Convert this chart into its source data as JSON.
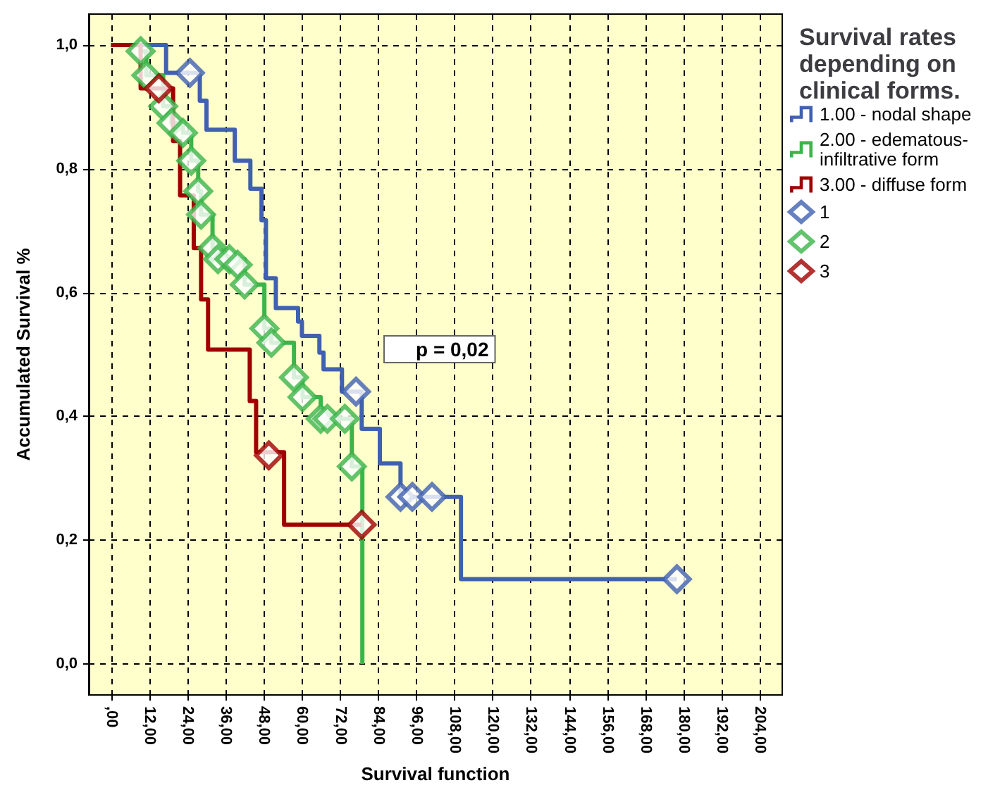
{
  "chart_data": {
    "type": "step",
    "xlabel": "Survival function",
    "ylabel": "Accumulated Survival %",
    "legend_title": "Survival rates depending on clinical forms.",
    "annotations": [
      "p = 0,02"
    ],
    "xlim": [
      -7,
      211
    ],
    "xticks": [
      {
        "value": 0,
        "label": ",00"
      },
      {
        "value": 12,
        "label": "12,00"
      },
      {
        "value": 24,
        "label": "24,00"
      },
      {
        "value": 36,
        "label": "36,00"
      },
      {
        "value": 48,
        "label": "48,00"
      },
      {
        "value": 60,
        "label": "60,00"
      },
      {
        "value": 72,
        "label": "72,00"
      },
      {
        "value": 84,
        "label": "84,00"
      },
      {
        "value": 96,
        "label": "96,00"
      },
      {
        "value": 108,
        "label": "108,00"
      },
      {
        "value": 120,
        "label": "120,00"
      },
      {
        "value": 132,
        "label": "132,00"
      },
      {
        "value": 144,
        "label": "144,00"
      },
      {
        "value": 156,
        "label": "156,00"
      },
      {
        "value": 168,
        "label": "168,00"
      },
      {
        "value": 180,
        "label": "180,00"
      },
      {
        "value": 192,
        "label": "192,00"
      },
      {
        "value": 204,
        "label": "204,00"
      }
    ],
    "ylim": [
      -0.05,
      1.05
    ],
    "yticks": [
      {
        "value": 0,
        "label": "0,0"
      },
      {
        "value": 0.2,
        "label": "0,2"
      },
      {
        "value": 0.4,
        "label": "0,4"
      },
      {
        "value": 0.6,
        "label": "0,6"
      },
      {
        "value": 0.8,
        "label": "0,8"
      },
      {
        "value": 1,
        "label": "1,0"
      }
    ],
    "grid": true,
    "legend": "right",
    "line_style": "solid",
    "series": [
      {
        "name": "1.00 - nodal shape",
        "marker": "none",
        "color": "#4060b0",
        "x": [
          0,
          17.3,
          27.9,
          30,
          38.9,
          43.8,
          47.3,
          48.7,
          51.8,
          58.8,
          60,
          65.5,
          66.8,
          72.6,
          78.8,
          84.5,
          91,
          110,
          177.9
        ],
        "values": [
          1,
          0.955,
          0.91,
          0.863,
          0.813,
          0.768,
          0.717,
          0.623,
          0.575,
          0.553,
          0.53,
          0.503,
          0.476,
          0.44,
          0.38,
          0.324,
          0.27,
          0.137,
          0.137
        ]
      },
      {
        "name": "2.00 - edematous-infiltrative form",
        "marker": "none",
        "color": "#3cb44a",
        "x": [
          0,
          9.3,
          11.1,
          16.4,
          19,
          22.6,
          25.2,
          27.4,
          28.3,
          31.9,
          33.6,
          42,
          48.2,
          50.4,
          57.5,
          60.2,
          65.9,
          75.7,
          79
        ],
        "values": [
          1,
          0.99,
          0.951,
          0.901,
          0.874,
          0.858,
          0.813,
          0.764,
          0.726,
          0.672,
          0.654,
          0.613,
          0.542,
          0.519,
          0.463,
          0.431,
          0.396,
          0.319,
          0
        ]
      },
      {
        "name": "3.00 - diffuse form",
        "marker": "none",
        "color": "#a00000",
        "x": [
          0,
          9.3,
          19.5,
          21.7,
          26,
          28.3,
          30.5,
          43.6,
          45.6,
          54.4,
          78.8
        ],
        "values": [
          1,
          0.93,
          0.845,
          0.757,
          0.672,
          0.589,
          0.508,
          0.425,
          0.342,
          0.225,
          0.225
        ]
      },
      {
        "name": "1",
        "type": "scatter",
        "marker": "diamond",
        "color": "#4060b0",
        "x": [
          24.8,
          77,
          91,
          94.7,
          100.9,
          177.9
        ],
        "values": [
          0.955,
          0.44,
          0.27,
          0.27,
          0.27,
          0.137
        ]
      },
      {
        "name": "2",
        "type": "scatter",
        "marker": "diamond",
        "color": "#3cb44a",
        "x": [
          9.3,
          11.1,
          16.4,
          19,
          22.6,
          25.2,
          27.4,
          28.3,
          31.9,
          33.6,
          37.2,
          39.8,
          42,
          48.2,
          50.4,
          57.5,
          60.2,
          65.9,
          68,
          73.5,
          75.7
        ],
        "values": [
          0.99,
          0.951,
          0.901,
          0.874,
          0.858,
          0.813,
          0.764,
          0.726,
          0.672,
          0.654,
          0.654,
          0.645,
          0.613,
          0.542,
          0.519,
          0.463,
          0.431,
          0.396,
          0.396,
          0.396,
          0.319
        ]
      },
      {
        "name": "3",
        "type": "scatter",
        "marker": "diamond",
        "color": "#a00000",
        "x": [
          15,
          49.6,
          78.8
        ],
        "values": [
          0.93,
          0.337,
          0.225
        ]
      }
    ]
  }
}
